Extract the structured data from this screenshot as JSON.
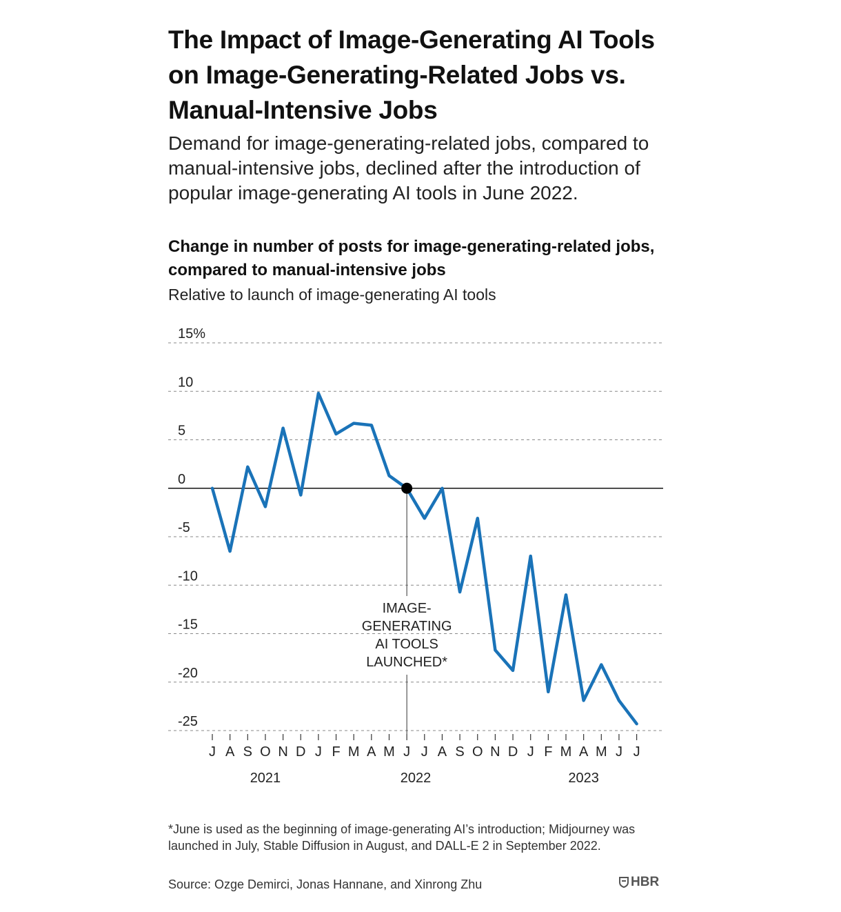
{
  "header": {
    "title": "The Impact of Image-Generating AI Tools on Image-Generating-Related Jobs vs. Manual-Intensive Jobs",
    "subtitle": "Demand for image-generating-related jobs, compared to manual-intensive jobs, declined after the introduction of popular image-generating AI tools in June 2022."
  },
  "chart_data": {
    "type": "line",
    "title": "Change in number of posts for image-generating-related jobs, compared to manual-intensive jobs",
    "subtitle": "Relative to launch of image-generating AI tools",
    "xlabel": "",
    "ylabel": "",
    "ylim": [
      -25,
      15
    ],
    "yticks": [
      15,
      10,
      5,
      0,
      -5,
      -10,
      -15,
      -20,
      -25
    ],
    "ytick_labels": [
      "15%",
      "10",
      "5",
      "0",
      "-5",
      "-10",
      "-15",
      "-20",
      "-25"
    ],
    "grid": true,
    "categories": [
      "J",
      "A",
      "S",
      "O",
      "N",
      "D",
      "J",
      "F",
      "M",
      "A",
      "M",
      "J",
      "J",
      "A",
      "S",
      "O",
      "N",
      "D",
      "J",
      "F",
      "M",
      "A",
      "M",
      "J",
      "J"
    ],
    "years": [
      {
        "label": "2021",
        "center_index": 3
      },
      {
        "label": "2022",
        "center_index": 11.5
      },
      {
        "label": "2023",
        "center_index": 21
      }
    ],
    "series": [
      {
        "color": "#1a73b8",
        "values": [
          0,
          -6.5,
          2.2,
          -1.9,
          6.2,
          -0.7,
          9.8,
          5.6,
          6.7,
          6.5,
          1.3,
          0,
          -3.1,
          0,
          -10.7,
          -3.1,
          -16.7,
          -18.8,
          -7.0,
          -21.0,
          -11.0,
          -21.9,
          -18.2,
          -21.9,
          -24.3
        ]
      }
    ],
    "annotations": [
      {
        "index": 11,
        "value": 0,
        "lines": [
          "IMAGE-",
          "GENERATING",
          "AI TOOLS",
          "LAUNCHED*"
        ]
      }
    ]
  },
  "footer": {
    "footnote": "*June is used as the beginning of image-generating AI’s introduction; Midjourney was launched in July, Stable Diffusion in August, and DALL-E 2 in September 2022.",
    "source": "Source: Ozge Demirci, Jonas Hannane, and Xinrong Zhu",
    "logo": "HBR"
  }
}
